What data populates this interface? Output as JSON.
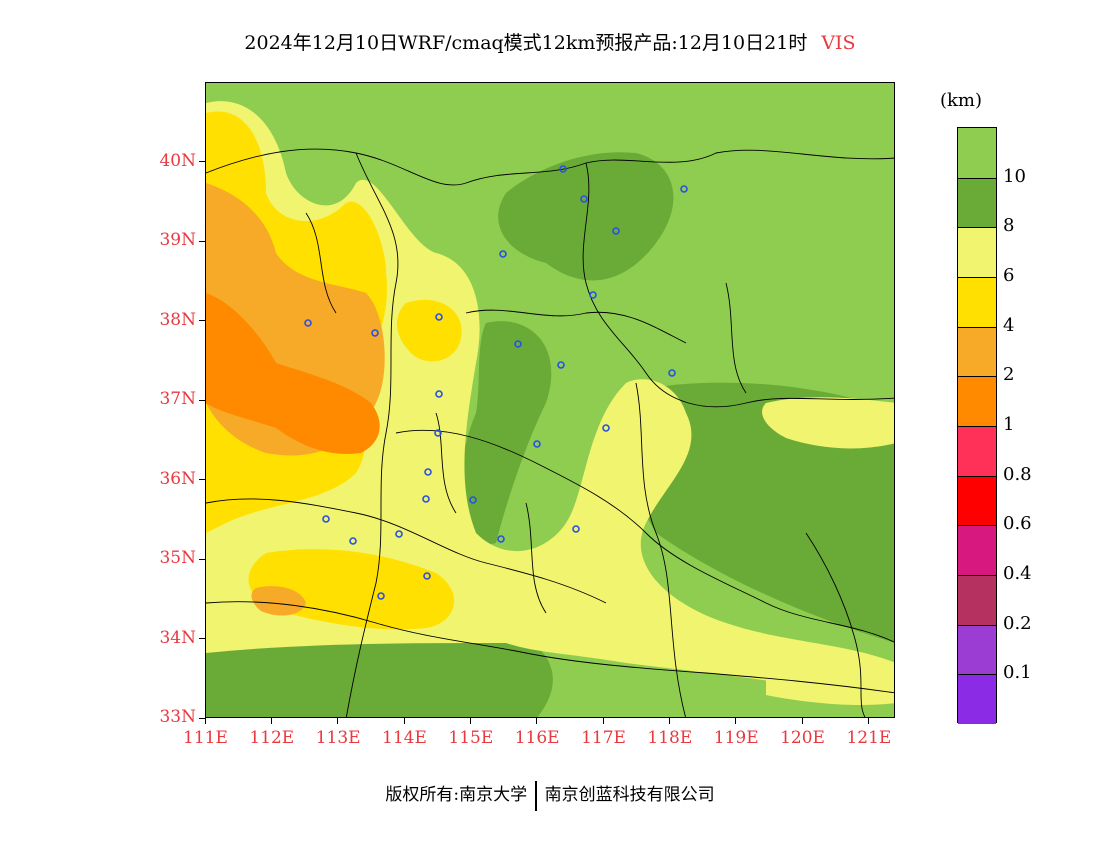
{
  "title": {
    "main": "2024年12月10日WRF/cmaq模式12km预报产品:12月10日21时",
    "variable": "VIS"
  },
  "map": {
    "lat_labels": [
      "40N",
      "39N",
      "38N",
      "37N",
      "36N",
      "35N",
      "34N",
      "33N"
    ],
    "lon_labels": [
      "111E",
      "112E",
      "113E",
      "114E",
      "115E",
      "116E",
      "117E",
      "118E",
      "119E",
      "120E",
      "121E"
    ],
    "lat_range": [
      33,
      41
    ],
    "lon_range": [
      111,
      121.4
    ],
    "colors": {
      "gt10": "#8fcd50",
      "c8_10": "#6aab37",
      "c6_8": "#f0f46e",
      "c4_6": "#ffe000",
      "c2_4": "#f7aa28",
      "c1_2": "#ff8a00",
      "station": "#2850e6"
    },
    "stations_visible": true,
    "icons": [
      "station-marker-icon"
    ]
  },
  "colorbar": {
    "unit": "(km)",
    "labels": [
      "10",
      "8",
      "6",
      "4",
      "2",
      "1",
      "0.8",
      "0.6",
      "0.4",
      "0.2",
      "0.1"
    ],
    "colors": [
      "#8fcd50",
      "#6aab37",
      "#f0f46e",
      "#ffe000",
      "#f7aa28",
      "#ff8a00",
      "#ff3158",
      "#ff0000",
      "#d7187e",
      "#b43160",
      "#9b3cd2",
      "#8c2be6"
    ]
  },
  "copyright": {
    "left": "版权所有:南京大学",
    "right": "南京创蓝科技有限公司"
  }
}
